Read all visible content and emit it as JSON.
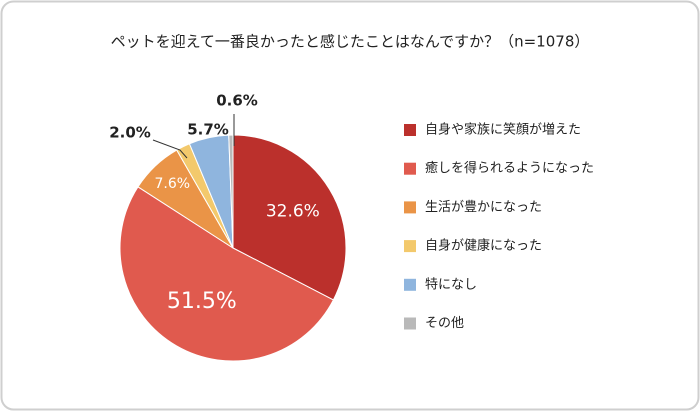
{
  "chart_data": {
    "type": "pie",
    "title": "ペットを迎えて一番良かったと感じたことはなんですか？（n=1078）",
    "categories": [
      "自身や家族に笑顔が増えた",
      "癒しを得られるようになった",
      "生活が豊かになった",
      "自身が健康になった",
      "特になし",
      "その他"
    ],
    "values": [
      32.6,
      51.5,
      7.6,
      2.0,
      5.7,
      0.6
    ],
    "value_labels": [
      "32.6%",
      "51.5%",
      "7.6%",
      "2.0%",
      "5.7%",
      "0.6%"
    ],
    "colors": [
      "#bb302c",
      "#e05a4e",
      "#ea9447",
      "#f3c96c",
      "#8fb5de",
      "#b9b9b9"
    ],
    "legend": "right"
  }
}
